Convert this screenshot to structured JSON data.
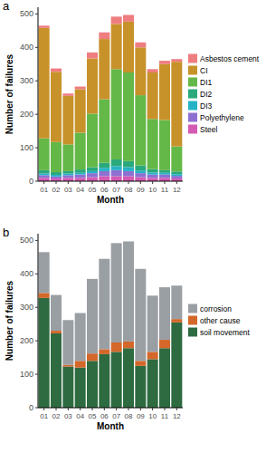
{
  "chart_data": [
    {
      "type": "bar",
      "title": "a",
      "x_label": "Month",
      "y_label": "Number of failures",
      "stacked": true,
      "categories": [
        "01",
        "02",
        "03",
        "04",
        "05",
        "06",
        "07",
        "08",
        "09",
        "10",
        "11",
        "12"
      ],
      "series": [
        {
          "name": "Asbestos cement",
          "color": "#ee7d80",
          "values": [
            7,
            10,
            7,
            8,
            18,
            20,
            22,
            20,
            15,
            10,
            10,
            8
          ]
        },
        {
          "name": "CI",
          "color": "#c8922a",
          "values": [
            330,
            210,
            145,
            130,
            165,
            180,
            135,
            152,
            143,
            139,
            167,
            253
          ]
        },
        {
          "name": "DI1",
          "color": "#64b848",
          "values": [
            95,
            90,
            80,
            110,
            160,
            190,
            270,
            265,
            210,
            150,
            150,
            75
          ]
        },
        {
          "name": "DI2",
          "color": "#2aa97c",
          "values": [
            10,
            8,
            7,
            10,
            12,
            15,
            20,
            18,
            15,
            10,
            8,
            8
          ]
        },
        {
          "name": "DI3",
          "color": "#26b2c6",
          "values": [
            5,
            5,
            5,
            5,
            6,
            10,
            12,
            12,
            8,
            6,
            5,
            5
          ]
        },
        {
          "name": "Polyethylene",
          "color": "#8e70d2",
          "values": [
            8,
            6,
            8,
            10,
            12,
            15,
            18,
            15,
            12,
            10,
            10,
            8
          ]
        },
        {
          "name": "Steel",
          "color": "#d45ab2",
          "values": [
            10,
            8,
            10,
            10,
            12,
            15,
            15,
            15,
            12,
            10,
            10,
            8
          ]
        }
      ],
      "ylim": [
        0,
        520
      ],
      "yticks": [
        0,
        100,
        200,
        300,
        400,
        500
      ],
      "legend": "right"
    },
    {
      "type": "bar",
      "title": "b",
      "x_label": "Month",
      "y_label": "Number of failures",
      "stacked": true,
      "categories": [
        "01",
        "02",
        "03",
        "04",
        "05",
        "06",
        "07",
        "08",
        "09",
        "10",
        "11",
        "12"
      ],
      "series": [
        {
          "name": "corrosion",
          "color": "#9a9fa4",
          "values": [
            122,
            107,
            134,
            143,
            223,
            270,
            297,
            299,
            275,
            168,
            157,
            100
          ]
        },
        {
          "name": "other cause",
          "color": "#d4672a",
          "values": [
            15,
            8,
            5,
            20,
            22,
            15,
            28,
            20,
            15,
            22,
            25,
            10
          ]
        },
        {
          "name": "soil movement",
          "color": "#2e6b40",
          "values": [
            328,
            222,
            123,
            120,
            140,
            160,
            167,
            178,
            125,
            145,
            178,
            255
          ]
        }
      ],
      "ylim": [
        0,
        520
      ],
      "yticks": [
        0,
        100,
        200,
        300,
        400,
        500
      ],
      "legend": "right"
    }
  ]
}
